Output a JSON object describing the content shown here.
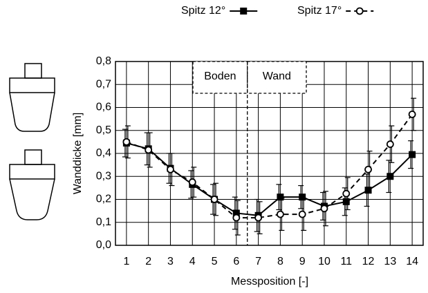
{
  "chart_data": {
    "type": "line",
    "x_label": "Messposition   [-]",
    "y_label": "Wanddicke   [mm]",
    "x": [
      1,
      2,
      3,
      4,
      5,
      6,
      7,
      8,
      9,
      10,
      11,
      12,
      13,
      14
    ],
    "xlim": [
      0.5,
      14.5
    ],
    "xticks": [
      1,
      2,
      3,
      4,
      5,
      6,
      7,
      8,
      9,
      10,
      11,
      12,
      13,
      14
    ],
    "ylim": [
      0,
      0.8
    ],
    "yticks": [
      {
        "value": 0,
        "label": "0,0"
      },
      {
        "value": 0.1,
        "label": "0,1"
      },
      {
        "value": 0.2,
        "label": "0,2"
      },
      {
        "value": 0.3,
        "label": "0,3"
      },
      {
        "value": 0.4,
        "label": "0,4"
      },
      {
        "value": 0.5,
        "label": "0,5"
      },
      {
        "value": 0.6,
        "label": "0,6"
      },
      {
        "value": 0.7,
        "label": "0,7"
      },
      {
        "value": 0.8,
        "label": "0,8"
      }
    ],
    "grid": true,
    "divider_x": 6.5,
    "annotations": [
      "Boden",
      "Wand"
    ],
    "series": [
      {
        "name": "Spitz 12°",
        "color": "#000000",
        "dash": false,
        "marker": "square",
        "values": [
          0.445,
          0.42,
          0.335,
          0.265,
          0.2,
          0.14,
          0.13,
          0.21,
          0.21,
          0.17,
          0.19,
          0.24,
          0.3,
          0.395
        ],
        "errors": [
          0.06,
          0.07,
          0.065,
          0.06,
          0.065,
          0.07,
          0.07,
          0.055,
          0.05,
          0.06,
          0.06,
          0.07,
          0.07,
          0.06
        ]
      },
      {
        "name": "Spitz 17°",
        "color": "#000000",
        "dash": true,
        "marker": "circle",
        "values": [
          0.45,
          0.415,
          0.33,
          0.275,
          0.2,
          0.12,
          0.12,
          0.135,
          0.135,
          0.16,
          0.225,
          0.33,
          0.44,
          0.57
        ],
        "errors": [
          0.07,
          0.075,
          0.07,
          0.065,
          0.07,
          0.075,
          0.07,
          0.07,
          0.07,
          0.075,
          0.07,
          0.08,
          0.08,
          0.07
        ]
      }
    ]
  }
}
